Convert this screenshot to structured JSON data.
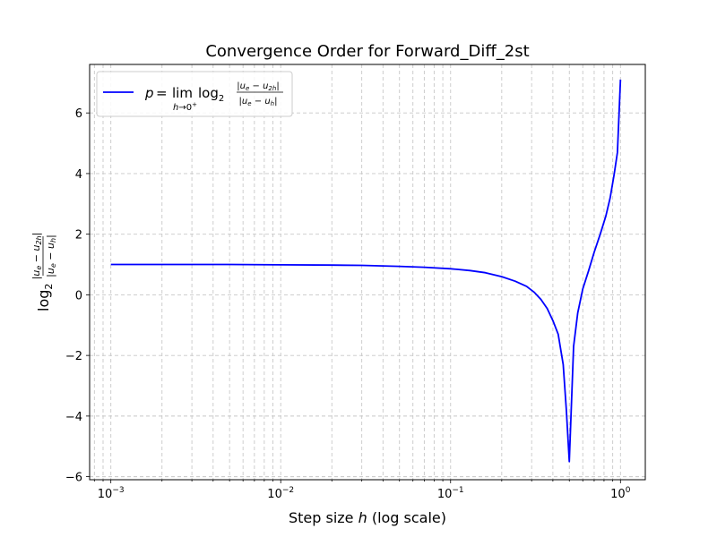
{
  "chart_data": {
    "type": "line",
    "title": "Convergence Order for Forward_Diff_2st",
    "xlabel": "Step size h (log scale)",
    "ylabel": "log2 |ue − u2h| / |ue − uh|",
    "xscale": "log",
    "xlim": [
      0.00075,
      1.4
    ],
    "ylim": [
      -6.1,
      7.6
    ],
    "x_ticks": [
      0.001,
      0.01,
      0.1,
      1
    ],
    "x_tick_labels": [
      "10−3",
      "10−2",
      "10−1",
      "100"
    ],
    "y_ticks": [
      -6,
      -4,
      -2,
      0,
      2,
      4,
      6
    ],
    "y_tick_labels": [
      "−6",
      "−4",
      "−2",
      "0",
      "2",
      "4",
      "6"
    ],
    "grid": true,
    "legend_position": "top-left",
    "series": [
      {
        "name": "p = lim log2 |ue − u2h| / |ue − uh|, h→0+",
        "color": "#0000ff",
        "x": [
          0.001,
          0.002,
          0.005,
          0.01,
          0.02,
          0.03,
          0.05,
          0.07,
          0.1,
          0.13,
          0.16,
          0.2,
          0.24,
          0.28,
          0.31,
          0.34,
          0.37,
          0.4,
          0.43,
          0.46,
          0.48,
          0.5,
          0.53,
          0.56,
          0.6,
          0.65,
          0.7,
          0.76,
          0.82,
          0.87,
          0.92,
          0.96,
          1.0
        ],
        "y": [
          1.0,
          1.0,
          1.0,
          0.99,
          0.98,
          0.97,
          0.94,
          0.91,
          0.86,
          0.8,
          0.73,
          0.6,
          0.45,
          0.28,
          0.09,
          -0.15,
          -0.45,
          -0.85,
          -1.3,
          -2.3,
          -3.8,
          -5.5,
          -1.7,
          -0.6,
          0.2,
          0.8,
          1.4,
          2.0,
          2.6,
          3.2,
          4.0,
          4.7,
          7.1
        ]
      }
    ]
  }
}
